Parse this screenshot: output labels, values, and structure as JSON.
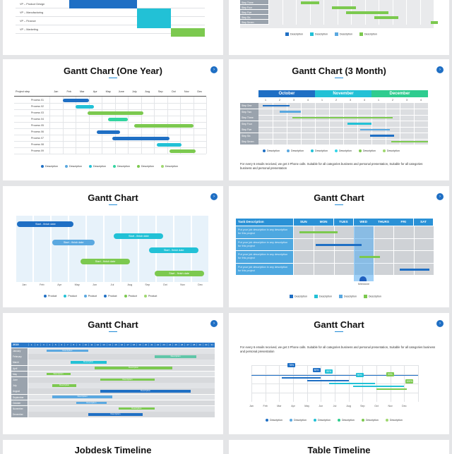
{
  "colors": {
    "blue": "#1f6fc4",
    "teal": "#22c1d6",
    "green": "#7cc94f",
    "cyan": "#33d4e8",
    "lblue": "#5aa8e0",
    "grey": "#d7d9dc"
  },
  "top_left": {
    "rows": [
      "VP – Product Design",
      "VP – Manufacturing",
      "VP – Finance",
      "VP – Marketing"
    ]
  },
  "top_right": {
    "rows": [
      "Step Three",
      "Step Four",
      "Step Five",
      "Step Six",
      "Step Seven"
    ],
    "legend": [
      "Description",
      "Description",
      "Description",
      "Description"
    ]
  },
  "year": {
    "title": "Gantt Chart (One Year)",
    "header_label": "Project step",
    "months": [
      "Jan",
      "Feb",
      "Mar",
      "Apr",
      "May",
      "June",
      "July",
      "Aug",
      "Sep",
      "Oct",
      "Nov",
      "Dec"
    ],
    "rows": [
      "Process 01",
      "Process 02",
      "Process 03",
      "Process 04",
      "Process 05",
      "Process 06",
      "Process 07",
      "Process 08",
      "Process 09"
    ],
    "legend": [
      "Description",
      "Description",
      "Description",
      "Description",
      "Description",
      "Description"
    ]
  },
  "three": {
    "title": "Gantt Chart (3 Month)",
    "months": [
      "October",
      "November",
      "December"
    ],
    "weeks": [
      "1",
      "2",
      "3",
      "4",
      "1",
      "2",
      "3",
      "4",
      "1",
      "2",
      "3",
      "4"
    ],
    "rows": [
      "Step One",
      "Step Two",
      "Step Three",
      "Step Four",
      "Step Five",
      "Step Six",
      "Step Seven"
    ],
    "legend": [
      "Description",
      "Description",
      "Description",
      "Description",
      "Description",
      "Description"
    ],
    "para": "For every 6 emails received, we get 3 Phone calls. Suitable for all categories business and personal presentation, Suitable for all categories business and personal presentation"
  },
  "bars": {
    "title": "Gantt Chart",
    "labels": [
      "Start - finish date",
      "Start - finish date",
      "Start - finish date",
      "Start - finish date",
      "Start - finish date",
      "Start - finish date"
    ],
    "axis": [
      "Jan",
      "Feb",
      "Apr",
      "May",
      "Jun",
      "Jul",
      "Aug",
      "Sep",
      "Oct",
      "Nov",
      "Dec"
    ],
    "legend": [
      "Product",
      "Product",
      "Product",
      "Product",
      "Product",
      "Product"
    ]
  },
  "week": {
    "title": "Gantt Chart",
    "headers": [
      "Task Description",
      "SUN",
      "MON",
      "TUES",
      "WED",
      "THURS",
      "FRI",
      "SAT"
    ],
    "tasks": [
      "Put your job description in any description for this project",
      "Put your job description in any description for this project",
      "Put your job description in any description for this project",
      "Put your job description in any description for this project"
    ],
    "milestone": "Milestone",
    "legend": [
      "Description",
      "Description",
      "Description",
      "Description"
    ]
  },
  "days": {
    "title": "Gantt Chart",
    "year_label": "2019",
    "days": [
      "1",
      "2",
      "3",
      "4",
      "5",
      "6",
      "7",
      "8",
      "9",
      "10",
      "11",
      "12",
      "13",
      "14",
      "15",
      "16",
      "17",
      "18",
      "19",
      "20",
      "21",
      "22",
      "23",
      "24",
      "25",
      "26",
      "27",
      "28",
      "29",
      "30",
      "31"
    ],
    "rows": [
      "January",
      "February",
      "March",
      "April",
      "May",
      "June",
      "July",
      "August",
      "September",
      "October",
      "November",
      "December"
    ],
    "bar_label": "Description"
  },
  "milestone": {
    "title": "Gantt Chart",
    "para": "For every 6 emails received, we get 3 Phone calls. Suitable for all categories business and personal presentation, Suitable for all categories business and personal presentation",
    "axis": [
      "Jan",
      "Feb",
      "Mar",
      "Apr",
      "May",
      "Jun",
      "Jul",
      "Aug",
      "Sep",
      "Oct",
      "Nov",
      "Dec"
    ],
    "flags": [
      "78%",
      "80%",
      "80%",
      "90%",
      "90%",
      "100%"
    ],
    "legend": [
      "Description",
      "Description",
      "Description",
      "Description",
      "Description",
      "Description"
    ]
  },
  "bottom": {
    "left_title": "Jobdesk Timeline",
    "right_title": "Table Timeline"
  }
}
